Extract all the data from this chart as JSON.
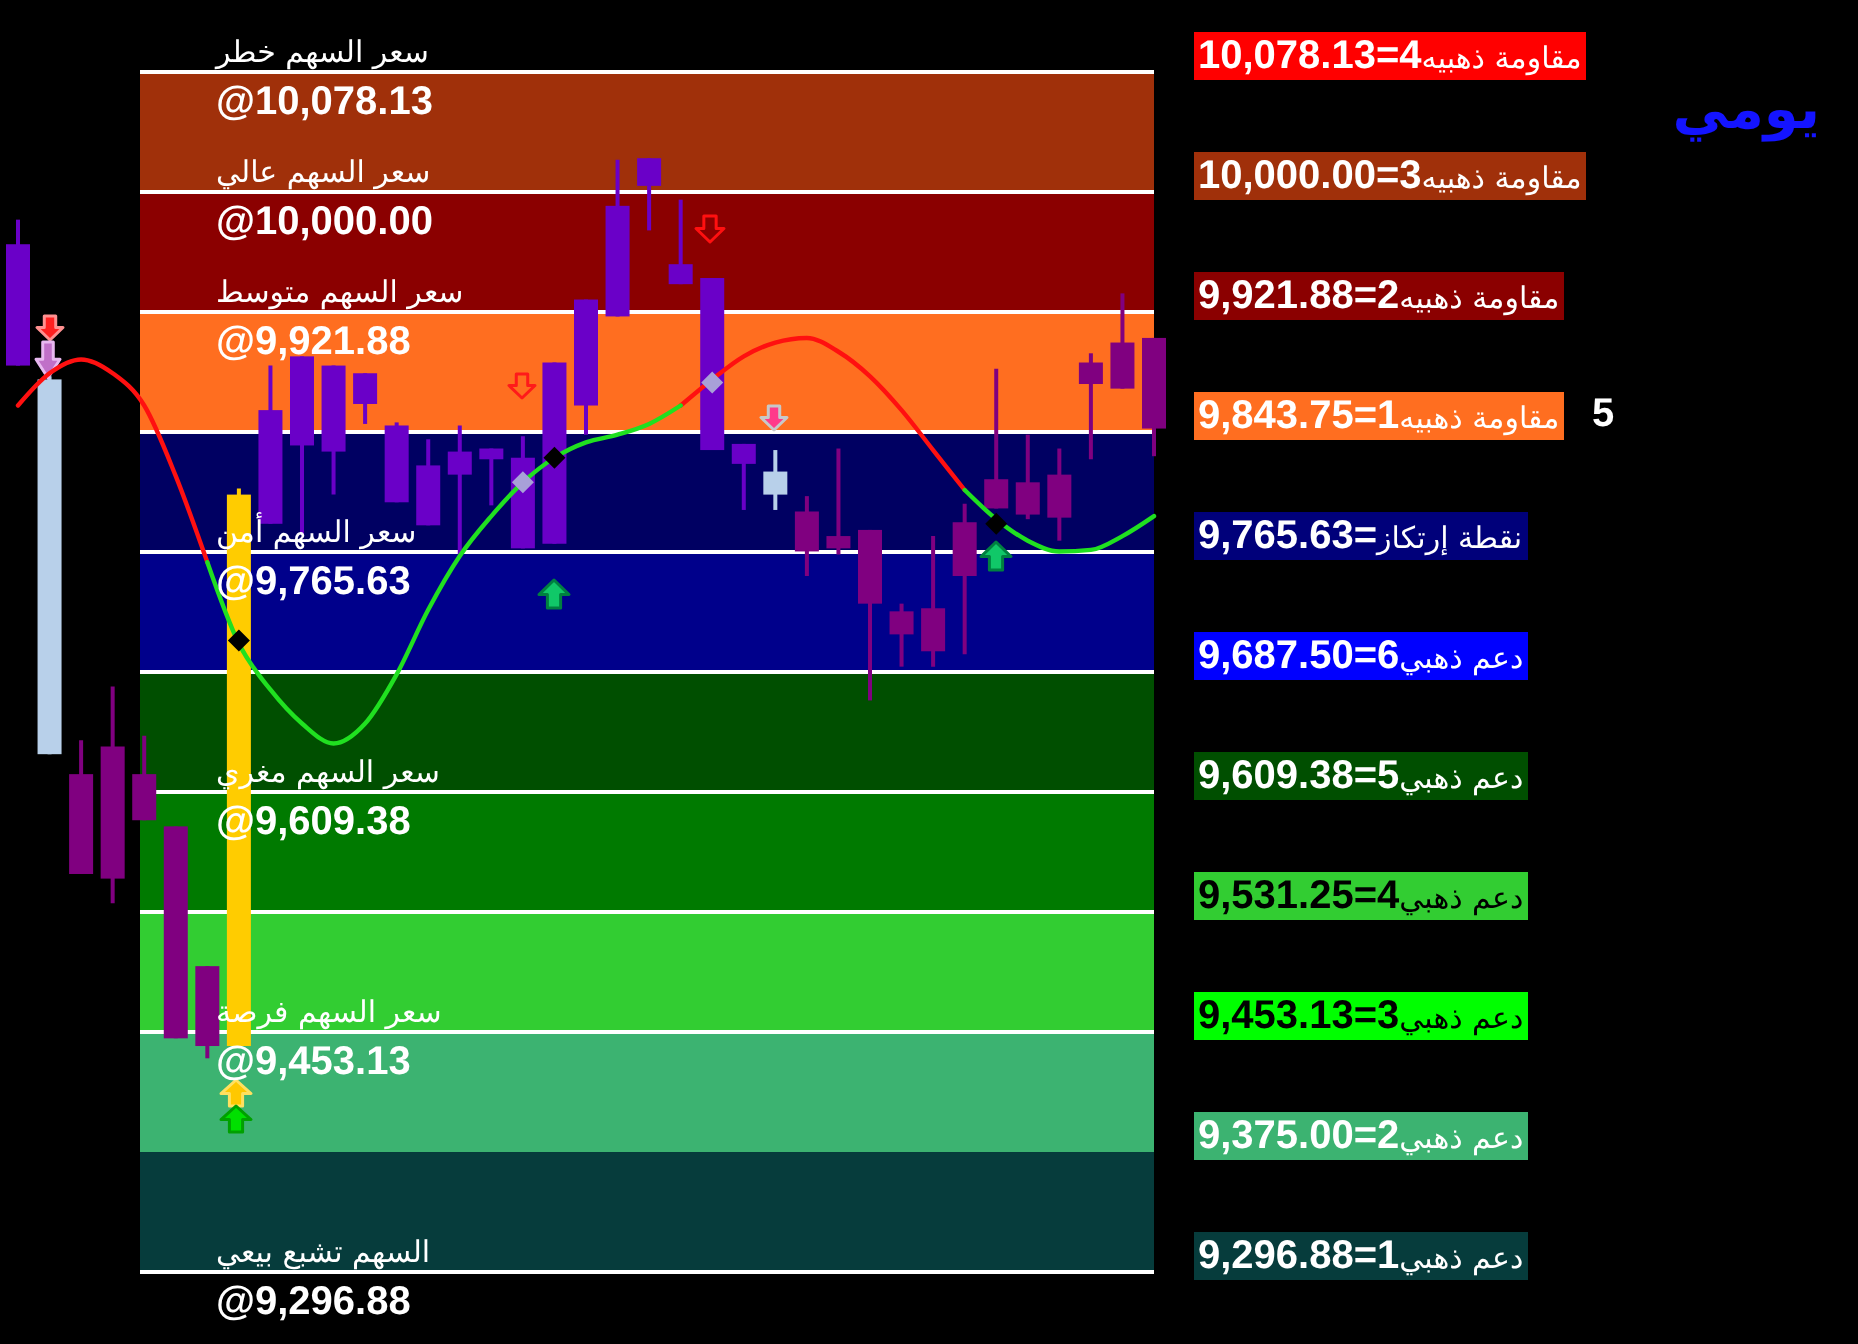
{
  "chart_data": {
    "type": "candlestick",
    "title": "يومي",
    "categories": [
      null,
      null,
      null,
      null,
      null,
      null,
      null,
      null,
      null,
      null,
      null,
      null,
      null,
      null,
      null,
      null,
      null,
      null,
      null,
      null,
      null,
      null,
      null,
      null,
      null,
      null,
      null,
      null,
      null,
      null,
      null,
      null,
      null,
      null,
      null,
      null,
      null
    ],
    "ohlc": [
      [
        9887,
        9982,
        9887,
        9966
      ],
      [
        9878,
        9880,
        9634,
        9634
      ],
      [
        9621,
        9643,
        9556,
        9556
      ],
      [
        9639,
        9678,
        9537,
        9553
      ],
      [
        9621,
        9646,
        9591,
        9591
      ],
      [
        9587,
        9587,
        9449,
        9449
      ],
      [
        9496,
        9496,
        9436,
        9444
      ],
      [
        9444,
        9807,
        9444,
        9803
      ],
      [
        9784,
        9887,
        9784,
        9858
      ],
      [
        9835,
        9893,
        9777,
        9893
      ],
      [
        9831,
        9887,
        9803,
        9887
      ],
      [
        9862,
        9882,
        9849,
        9882
      ],
      [
        9798,
        9850,
        9798,
        9848
      ],
      [
        9783,
        9839,
        9783,
        9822
      ],
      [
        9816,
        9848,
        9764,
        9831
      ],
      [
        9826,
        9833,
        9796,
        9833
      ],
      [
        9768,
        9841,
        9768,
        9827
      ],
      [
        9771,
        9889,
        9771,
        9889
      ],
      [
        9861,
        9930,
        9842,
        9930
      ],
      [
        9919,
        10021,
        9919,
        9991
      ],
      [
        10004,
        10022,
        9975,
        10022
      ],
      [
        9940,
        9995,
        9940,
        9953
      ],
      [
        9832,
        9944,
        9832,
        9944
      ],
      [
        9823,
        9836,
        9793,
        9836
      ],
      [
        9818,
        9832,
        9793,
        9803
      ],
      [
        9792,
        9802,
        9750,
        9766
      ],
      [
        9776,
        9833,
        9764,
        9768
      ],
      [
        9780,
        9780,
        9669,
        9732
      ],
      [
        9727,
        9732,
        9691,
        9712
      ],
      [
        9729,
        9776,
        9691,
        9701
      ],
      [
        9785,
        9797,
        9699,
        9750
      ],
      [
        9813,
        9885,
        9794,
        9794
      ],
      [
        9811,
        9842,
        9787,
        9790
      ],
      [
        9816,
        9833,
        9773,
        9788
      ],
      [
        9889,
        9895,
        9826,
        9875
      ],
      [
        9902,
        9934,
        9872,
        9872
      ],
      [
        9905,
        9905,
        9828,
        9846
      ]
    ],
    "colors": [
      "#6a00c8",
      "#b8d0ea",
      "#800080",
      "#800080",
      "#800080",
      "#800080",
      "#800080",
      "#ffcc00",
      "#6a00c8",
      "#6a00c8",
      "#6a00c8",
      "#6a00c8",
      "#6a00c8",
      "#6a00c8",
      "#6a00c8",
      "#6a00c8",
      "#6a00c8",
      "#6a00c8",
      "#6a00c8",
      "#6a00c8",
      "#6a00c8",
      "#6a00c8",
      "#6a00c8",
      "#6a00c8",
      "#b8d0ea",
      "#800080",
      "#800080",
      "#800080",
      "#800080",
      "#800080",
      "#800080",
      "#800080",
      "#800080",
      "#800080",
      "#800080",
      "#800080",
      "#800080"
    ],
    "series": [
      {
        "type": "line",
        "color": "#ff1010",
        "values": [
          9861,
          9882,
          9891,
          9882,
          9861,
          9815,
          9759,
          null,
          null,
          null,
          null,
          null,
          null,
          null,
          null,
          null,
          null,
          null,
          null,
          null,
          null,
          9861,
          9878,
          9893,
          9902,
          9905,
          9896,
          9880,
          9858,
          9832,
          9806,
          null,
          null,
          null,
          null,
          null,
          null
        ]
      },
      {
        "type": "line",
        "color": "#20e020",
        "values": [
          null,
          null,
          null,
          null,
          null,
          null,
          9759,
          9706,
          9676,
          9654,
          9641,
          9654,
          9686,
          9728,
          9763,
          9789,
          9811,
          9827,
          9837,
          9842,
          9849,
          9861,
          null,
          null,
          null,
          null,
          null,
          null,
          null,
          null,
          9806,
          9787,
          9773,
          9766,
          9767,
          9776,
          9789
        ]
      },
      {
        "type": "scatter",
        "marker": "diamond",
        "color": "#000000",
        "values": [
          null,
          null,
          null,
          null,
          null,
          null,
          null,
          9708,
          null,
          null,
          null,
          null,
          null,
          null,
          null,
          null,
          null,
          9827,
          null,
          null,
          null,
          null,
          null,
          null,
          null,
          null,
          null,
          null,
          null,
          null,
          null,
          9784,
          null,
          null,
          null,
          null,
          null
        ]
      },
      {
        "type": "scatter",
        "marker": "diamond",
        "color": "#a8a0d8",
        "values": [
          null,
          null,
          null,
          null,
          null,
          null,
          null,
          null,
          null,
          null,
          null,
          null,
          null,
          null,
          null,
          null,
          9811,
          null,
          null,
          null,
          null,
          null,
          9876,
          null,
          null,
          null,
          null,
          null,
          null,
          null,
          null,
          null,
          null,
          null,
          null,
          null,
          null
        ]
      }
    ],
    "ylim": [
      9296.88,
      10078.13
    ],
    "yticks": [
      {
        "value": 10078.13,
        "label": "سعر السهم خطر\n@10,078.13"
      },
      {
        "value": 10000,
        "label": "سعر السهم عالي\n@10,000.00"
      },
      {
        "value": 9921.88,
        "label": "سعر السهم متوسط\n@9,921.88"
      },
      {
        "value": 9843.75,
        "label": null
      },
      {
        "value": 9765.63,
        "label": "سعر السهم أمن\n@9,765.63"
      },
      {
        "value": 9687.5,
        "label": null
      },
      {
        "value": 9609.38,
        "label": "سعر السهم مغري\n@9,609.38"
      },
      {
        "value": 9531.25,
        "label": null
      },
      {
        "value": 9453.13,
        "label": "سعر السهم فرصة\n@9,453.13"
      },
      {
        "value": 9296.88,
        "label": "السهم تشبع بيعي\n@9,296.88"
      }
    ],
    "tick_labels": "y",
    "grid": "y",
    "bands": [
      {
        "axis": "y",
        "from": 10000,
        "to": 10078.13,
        "color": "#a0300a"
      },
      {
        "axis": "y",
        "from": 9921.88,
        "to": 10000,
        "color": "#8b0000"
      },
      {
        "axis": "y",
        "from": 9843.75,
        "to": 9921.88,
        "color": "#ff6e20"
      },
      {
        "axis": "y",
        "from": 9765.63,
        "to": 9843.75,
        "color": "#000062"
      },
      {
        "axis": "y",
        "from": 9687.5,
        "to": 9765.63,
        "color": "#00008b"
      },
      {
        "axis": "y",
        "from": 9609.38,
        "to": 9687.5,
        "color": "#004f00"
      },
      {
        "axis": "y",
        "from": 9531.25,
        "to": 9609.38,
        "color": "#007a00"
      },
      {
        "axis": "y",
        "from": 9453.13,
        "to": 9531.25,
        "color": "#32cd32"
      },
      {
        "axis": "y",
        "from": 9375,
        "to": 9453.13,
        "color": "#3cb371"
      },
      {
        "axis": "y",
        "from": 9296.88,
        "to": 9375,
        "color": "#063c3c"
      }
    ],
    "annotations": [
      "مقاومة ذهبيه4=10,078.13",
      "مقاومة ذهبيه3=10,000.00",
      "مقاومة ذهبيه2=9,921.88",
      "مقاومة ذهبيه1=9,843.75",
      "نقطة إرتكاز=9,765.63",
      "دعم ذهبي6=9,687.50",
      "دعم ذهبي5=9,609.38",
      "دعم ذهبي4=9,531.25",
      "دعم ذهبي3=9,453.13",
      "دعم ذهبي2=9,375.00",
      "دعم ذهبي1=9,296.88",
      "5"
    ]
  }
}
